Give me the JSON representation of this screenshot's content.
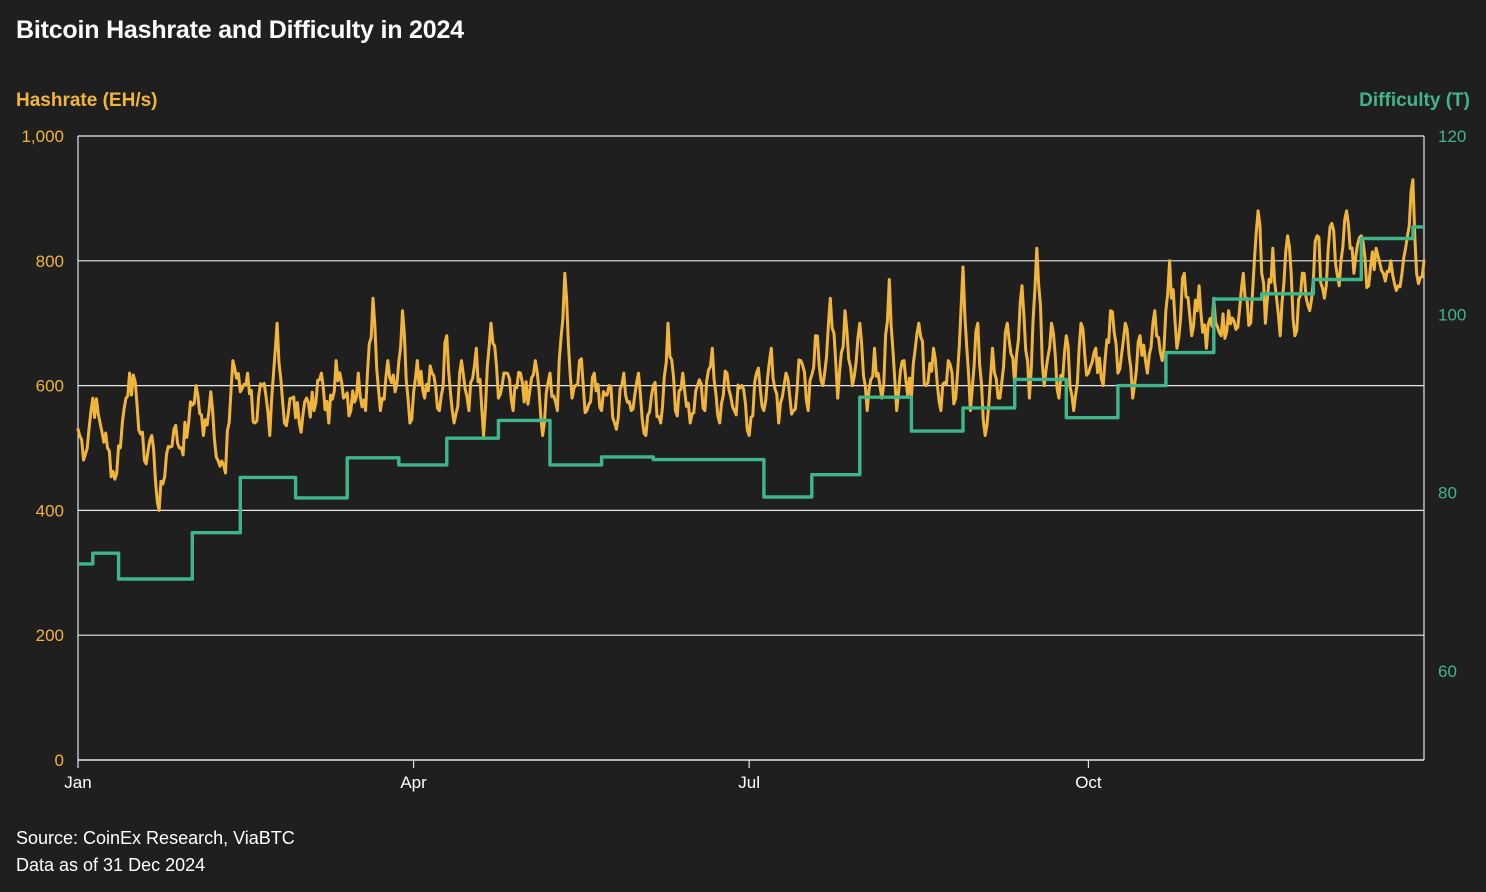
{
  "title": "Bitcoin Hashrate and Difficulty in 2024",
  "footer": {
    "source": "Source: CoinEx Research, ViaBTC",
    "date_note": "Data as of 31 Dec 2024"
  },
  "colors": {
    "background": "#1f1f1f",
    "hashrate": "#f2b53b",
    "difficulty": "#3fb68a",
    "grid": "#e6e6e6",
    "text": "#ffffff"
  },
  "chart_data": {
    "type": "line",
    "title": "Bitcoin Hashrate and Difficulty in 2024",
    "x_range_days": [
      0,
      365
    ],
    "x_ticks": [
      {
        "label": "Jan",
        "day": 0
      },
      {
        "label": "Apr",
        "day": 91
      },
      {
        "label": "Jul",
        "day": 182
      },
      {
        "label": "Oct",
        "day": 274
      }
    ],
    "y_left": {
      "label": "Hashrate (EH/s)",
      "range": [
        0,
        1000
      ],
      "ticks": [
        0,
        200,
        400,
        600,
        800,
        1000
      ],
      "tick_labels": [
        "0",
        "200",
        "400",
        "600",
        "800",
        "1,000"
      ]
    },
    "y_right": {
      "label": "Difficulty (T)",
      "range": [
        50,
        120
      ],
      "ticks": [
        60,
        80,
        100,
        120
      ],
      "tick_labels": [
        "60",
        "80",
        "100",
        "120"
      ]
    },
    "grid": true,
    "series": [
      {
        "name": "Hashrate (EH/s)",
        "axis": "left",
        "anchors": [
          [
            0,
            530
          ],
          [
            2,
            490
          ],
          [
            4,
            580
          ],
          [
            6,
            540
          ],
          [
            8,
            500
          ],
          [
            10,
            450
          ],
          [
            12,
            540
          ],
          [
            14,
            620
          ],
          [
            16,
            570
          ],
          [
            18,
            480
          ],
          [
            20,
            520
          ],
          [
            22,
            400
          ],
          [
            24,
            490
          ],
          [
            26,
            530
          ],
          [
            28,
            500
          ],
          [
            30,
            540
          ],
          [
            32,
            600
          ],
          [
            34,
            520
          ],
          [
            36,
            590
          ],
          [
            38,
            480
          ],
          [
            40,
            460
          ],
          [
            42,
            640
          ],
          [
            44,
            590
          ],
          [
            46,
            620
          ],
          [
            48,
            540
          ],
          [
            50,
            600
          ],
          [
            52,
            520
          ],
          [
            54,
            700
          ],
          [
            56,
            540
          ],
          [
            58,
            580
          ],
          [
            60,
            540
          ],
          [
            62,
            580
          ],
          [
            64,
            560
          ],
          [
            66,
            620
          ],
          [
            68,
            540
          ],
          [
            70,
            640
          ],
          [
            72,
            580
          ],
          [
            74,
            560
          ],
          [
            76,
            620
          ],
          [
            78,
            560
          ],
          [
            80,
            740
          ],
          [
            82,
            560
          ],
          [
            84,
            640
          ],
          [
            86,
            590
          ],
          [
            88,
            720
          ],
          [
            90,
            540
          ],
          [
            92,
            640
          ],
          [
            94,
            580
          ],
          [
            96,
            620
          ],
          [
            98,
            560
          ],
          [
            100,
            680
          ],
          [
            102,
            540
          ],
          [
            104,
            640
          ],
          [
            106,
            560
          ],
          [
            108,
            660
          ],
          [
            110,
            520
          ],
          [
            112,
            700
          ],
          [
            114,
            580
          ],
          [
            116,
            620
          ],
          [
            118,
            560
          ],
          [
            120,
            620
          ],
          [
            122,
            570
          ],
          [
            124,
            640
          ],
          [
            126,
            520
          ],
          [
            128,
            620
          ],
          [
            130,
            560
          ],
          [
            132,
            780
          ],
          [
            134,
            580
          ],
          [
            136,
            640
          ],
          [
            138,
            560
          ],
          [
            140,
            620
          ],
          [
            142,
            560
          ],
          [
            144,
            600
          ],
          [
            146,
            530
          ],
          [
            148,
            620
          ],
          [
            150,
            560
          ],
          [
            152,
            620
          ],
          [
            154,
            520
          ],
          [
            156,
            600
          ],
          [
            158,
            540
          ],
          [
            160,
            700
          ],
          [
            162,
            560
          ],
          [
            164,
            620
          ],
          [
            166,
            540
          ],
          [
            168,
            600
          ],
          [
            170,
            560
          ],
          [
            172,
            660
          ],
          [
            174,
            540
          ],
          [
            176,
            620
          ],
          [
            178,
            560
          ],
          [
            180,
            600
          ],
          [
            182,
            520
          ],
          [
            184,
            620
          ],
          [
            186,
            560
          ],
          [
            188,
            660
          ],
          [
            190,
            540
          ],
          [
            192,
            620
          ],
          [
            194,
            560
          ],
          [
            196,
            640
          ],
          [
            198,
            560
          ],
          [
            200,
            680
          ],
          [
            202,
            600
          ],
          [
            204,
            740
          ],
          [
            206,
            580
          ],
          [
            208,
            720
          ],
          [
            210,
            600
          ],
          [
            212,
            700
          ],
          [
            214,
            560
          ],
          [
            216,
            660
          ],
          [
            218,
            580
          ],
          [
            220,
            770
          ],
          [
            222,
            560
          ],
          [
            224,
            640
          ],
          [
            226,
            580
          ],
          [
            228,
            700
          ],
          [
            230,
            600
          ],
          [
            232,
            660
          ],
          [
            234,
            560
          ],
          [
            236,
            640
          ],
          [
            238,
            580
          ],
          [
            240,
            790
          ],
          [
            242,
            560
          ],
          [
            244,
            700
          ],
          [
            246,
            520
          ],
          [
            248,
            660
          ],
          [
            250,
            580
          ],
          [
            252,
            700
          ],
          [
            254,
            600
          ],
          [
            256,
            760
          ],
          [
            258,
            580
          ],
          [
            260,
            820
          ],
          [
            262,
            600
          ],
          [
            264,
            700
          ],
          [
            266,
            580
          ],
          [
            268,
            680
          ],
          [
            270,
            560
          ],
          [
            272,
            700
          ],
          [
            274,
            620
          ],
          [
            276,
            660
          ],
          [
            278,
            600
          ],
          [
            280,
            720
          ],
          [
            282,
            620
          ],
          [
            284,
            700
          ],
          [
            286,
            580
          ],
          [
            288,
            680
          ],
          [
            290,
            620
          ],
          [
            292,
            720
          ],
          [
            294,
            640
          ],
          [
            296,
            800
          ],
          [
            298,
            660
          ],
          [
            300,
            780
          ],
          [
            302,
            680
          ],
          [
            304,
            760
          ],
          [
            306,
            660
          ],
          [
            308,
            740
          ],
          [
            310,
            680
          ],
          [
            312,
            720
          ],
          [
            314,
            690
          ],
          [
            316,
            780
          ],
          [
            318,
            700
          ],
          [
            320,
            880
          ],
          [
            322,
            700
          ],
          [
            324,
            820
          ],
          [
            326,
            680
          ],
          [
            328,
            840
          ],
          [
            330,
            680
          ],
          [
            332,
            780
          ],
          [
            334,
            720
          ],
          [
            336,
            840
          ],
          [
            338,
            740
          ],
          [
            340,
            860
          ],
          [
            342,
            760
          ],
          [
            344,
            880
          ],
          [
            346,
            780
          ],
          [
            348,
            840
          ],
          [
            350,
            760
          ],
          [
            352,
            820
          ],
          [
            354,
            780
          ],
          [
            356,
            800
          ],
          [
            358,
            760
          ],
          [
            360,
            820
          ],
          [
            362,
            930
          ],
          [
            363,
            780
          ],
          [
            365,
            800
          ]
        ]
      },
      {
        "name": "Difficulty (T)",
        "axis": "right",
        "steps": [
          [
            0,
            72.0
          ],
          [
            4,
            73.2
          ],
          [
            11,
            70.3
          ],
          [
            31,
            75.5
          ],
          [
            44,
            81.7
          ],
          [
            59,
            79.4
          ],
          [
            73,
            83.9
          ],
          [
            87,
            83.1
          ],
          [
            100,
            86.1
          ],
          [
            114,
            88.1
          ],
          [
            128,
            83.1
          ],
          [
            142,
            84.0
          ],
          [
            156,
            83.7
          ],
          [
            170,
            83.7
          ],
          [
            186,
            79.5
          ],
          [
            199,
            82.0
          ],
          [
            212,
            90.7
          ],
          [
            226,
            86.9
          ],
          [
            240,
            89.5
          ],
          [
            254,
            92.7
          ],
          [
            268,
            88.4
          ],
          [
            282,
            92.0
          ],
          [
            295,
            95.7
          ],
          [
            308,
            101.7
          ],
          [
            321,
            102.3
          ],
          [
            335,
            103.9
          ],
          [
            348,
            108.5
          ],
          [
            362,
            109.8
          ],
          [
            365,
            109.8
          ]
        ]
      }
    ],
    "legend": "axis-colored titles"
  }
}
